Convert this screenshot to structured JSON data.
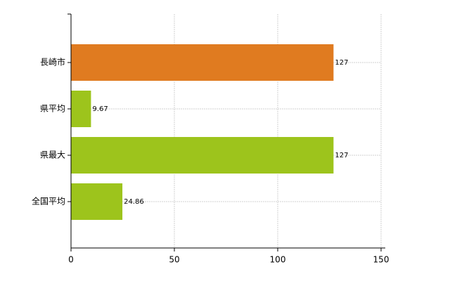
{
  "chart_data": {
    "type": "barh",
    "categories": [
      "長崎市",
      "県平均",
      "県最大",
      "全国平均"
    ],
    "values": [
      127,
      9.67,
      127,
      24.86
    ],
    "colors": [
      "#e07b20",
      "#9dc41c",
      "#9dc41c",
      "#9dc41c"
    ],
    "xlim": [
      0,
      150
    ],
    "xticks": [
      0,
      50,
      100,
      150
    ],
    "grid": true
  }
}
